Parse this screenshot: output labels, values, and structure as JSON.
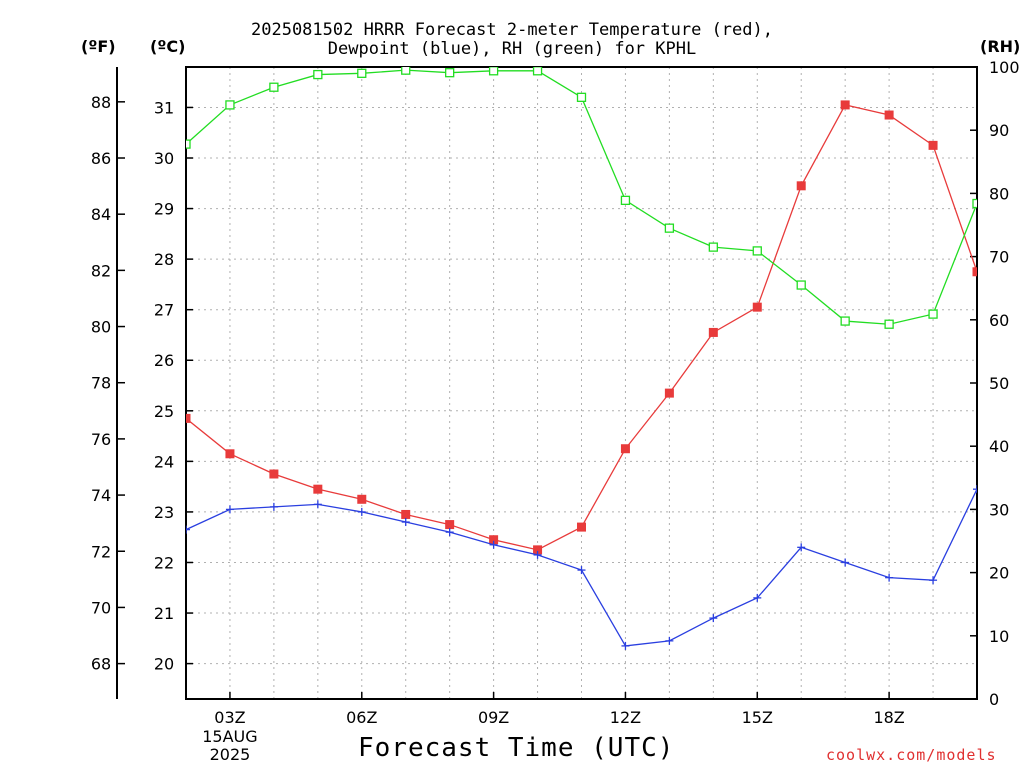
{
  "header": {
    "title_line1": "2025081502 HRRR Forecast 2-meter Temperature (red),",
    "title_line2": "Dewpoint (blue), RH (green) for KPHL",
    "unit_f": "(ºF)",
    "unit_c": "(ºC)",
    "unit_rh": "(RH)"
  },
  "footer": {
    "xlabel": "Forecast Time (UTC)",
    "credit": "coolwx.com/models"
  },
  "colors": {
    "temperature": "#e83b3b",
    "dewpoint": "#2a3fe0",
    "rh": "#22dd22",
    "grid": "#b0b0b0",
    "axis": "#000000"
  },
  "chart_data": {
    "type": "line",
    "x_hours": [
      2,
      3,
      4,
      5,
      6,
      7,
      8,
      9,
      10,
      11,
      12,
      13,
      14,
      15,
      16,
      17,
      18,
      19,
      20
    ],
    "x_range_hours": [
      2,
      20
    ],
    "x_ticks": [
      {
        "hour": 3,
        "label": "03Z",
        "sub1": "15AUG",
        "sub2": "2025"
      },
      {
        "hour": 6,
        "label": "06Z"
      },
      {
        "hour": 9,
        "label": "09Z"
      },
      {
        "hour": 12,
        "label": "12Z"
      },
      {
        "hour": 15,
        "label": "15Z"
      },
      {
        "hour": 18,
        "label": "18Z"
      }
    ],
    "ylim_c": [
      19.3,
      31.8
    ],
    "ylim_rh": [
      0,
      100
    ],
    "y_ticks_c": [
      20,
      21,
      22,
      23,
      24,
      25,
      26,
      27,
      28,
      29,
      30,
      31
    ],
    "y_ticks_f": [
      68,
      70,
      72,
      74,
      76,
      78,
      80,
      82,
      84,
      86,
      88
    ],
    "y_ticks_rh": [
      0,
      10,
      20,
      30,
      40,
      50,
      60,
      70,
      80,
      90,
      100
    ],
    "series": [
      {
        "name": "Temperature",
        "axis": "c",
        "marker": "filled-square",
        "values": [
          24.85,
          24.15,
          23.75,
          23.45,
          23.25,
          22.95,
          22.75,
          22.45,
          22.25,
          22.7,
          24.25,
          25.35,
          26.55,
          27.05,
          29.45,
          31.05,
          30.85,
          30.25,
          27.75
        ]
      },
      {
        "name": "Dewpoint",
        "axis": "c",
        "marker": "plus",
        "values": [
          22.65,
          23.05,
          23.1,
          23.15,
          23.0,
          22.8,
          22.6,
          22.35,
          22.15,
          21.85,
          20.35,
          20.45,
          20.9,
          21.3,
          22.3,
          22.0,
          21.7,
          21.65,
          23.45
        ]
      },
      {
        "name": "RH",
        "axis": "rh",
        "marker": "open-square",
        "values": [
          87.8,
          94.0,
          96.8,
          98.8,
          99.0,
          99.5,
          99.1,
          99.4,
          99.4,
          95.2,
          78.9,
          74.5,
          71.5,
          70.9,
          65.5,
          59.8,
          59.3,
          60.9,
          78.4
        ]
      }
    ]
  }
}
